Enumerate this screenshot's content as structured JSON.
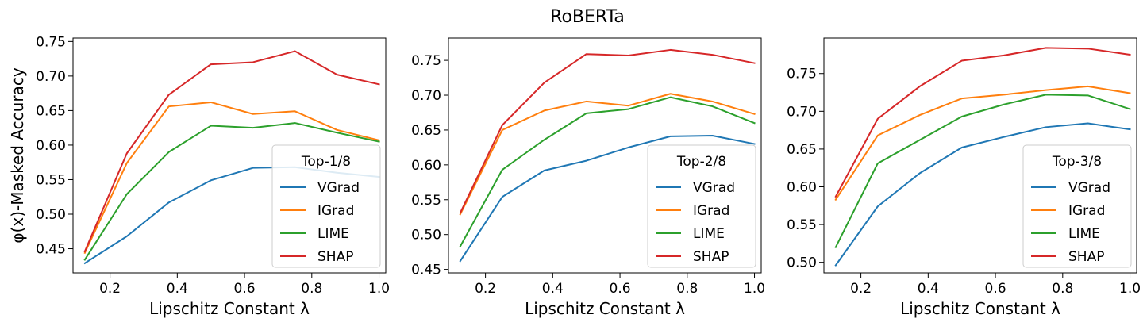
{
  "figure": {
    "suptitle": "RoBERTa"
  },
  "colors": {
    "VGrad": "#1f77b4",
    "IGrad": "#ff7f0e",
    "LIME": "#2ca02c",
    "SHAP": "#d62728"
  },
  "chart_data": [
    {
      "type": "line",
      "xlabel": "Lipschitz Constant λ",
      "ylabel": "φ(x)-Masked Accuracy",
      "legend_title": "Top-1/8",
      "legend_position": "lower-right",
      "xlim": [
        0.09,
        1.02
      ],
      "ylim": [
        0.415,
        0.755
      ],
      "xticks": [
        0.2,
        0.4,
        0.6,
        0.8,
        1.0
      ],
      "xtick_labels": [
        "0.2",
        "0.4",
        "0.6",
        "0.8",
        "1.0"
      ],
      "yticks": [
        0.45,
        0.5,
        0.55,
        0.6,
        0.65,
        0.7,
        0.75
      ],
      "ytick_labels": [
        "0.45",
        "0.50",
        "0.55",
        "0.60",
        "0.65",
        "0.70",
        "0.75"
      ],
      "x": [
        0.125,
        0.25,
        0.375,
        0.5,
        0.625,
        0.75,
        0.875,
        1.0
      ],
      "series": [
        {
          "name": "VGrad",
          "values": [
            0.429,
            0.468,
            0.517,
            0.549,
            0.567,
            0.568,
            0.56,
            0.554
          ]
        },
        {
          "name": "IGrad",
          "values": [
            0.444,
            0.574,
            0.656,
            0.662,
            0.645,
            0.649,
            0.622,
            0.607
          ]
        },
        {
          "name": "LIME",
          "values": [
            0.434,
            0.529,
            0.59,
            0.628,
            0.625,
            0.632,
            0.618,
            0.605
          ]
        },
        {
          "name": "SHAP",
          "values": [
            0.446,
            0.588,
            0.673,
            0.717,
            0.72,
            0.736,
            0.702,
            0.688
          ]
        }
      ]
    },
    {
      "type": "line",
      "xlabel": "Lipschitz Constant λ",
      "ylabel": "",
      "legend_title": "Top-2/8",
      "legend_position": "lower-right",
      "xlim": [
        0.09,
        1.02
      ],
      "ylim": [
        0.445,
        0.782
      ],
      "xticks": [
        0.2,
        0.4,
        0.6,
        0.8,
        1.0
      ],
      "xtick_labels": [
        "0.2",
        "0.4",
        "0.6",
        "0.8",
        "1.0"
      ],
      "yticks": [
        0.45,
        0.5,
        0.55,
        0.6,
        0.65,
        0.7,
        0.75
      ],
      "ytick_labels": [
        "0.45",
        "0.50",
        "0.55",
        "0.60",
        "0.65",
        "0.70",
        "0.75"
      ],
      "x": [
        0.125,
        0.25,
        0.375,
        0.5,
        0.625,
        0.75,
        0.875,
        1.0
      ],
      "series": [
        {
          "name": "VGrad",
          "values": [
            0.462,
            0.554,
            0.592,
            0.606,
            0.625,
            0.641,
            0.642,
            0.63
          ]
        },
        {
          "name": "IGrad",
          "values": [
            0.529,
            0.65,
            0.678,
            0.691,
            0.685,
            0.702,
            0.691,
            0.673
          ]
        },
        {
          "name": "LIME",
          "values": [
            0.483,
            0.593,
            0.636,
            0.674,
            0.68,
            0.697,
            0.684,
            0.66
          ]
        },
        {
          "name": "SHAP",
          "values": [
            0.531,
            0.657,
            0.718,
            0.759,
            0.757,
            0.765,
            0.758,
            0.746
          ]
        }
      ]
    },
    {
      "type": "line",
      "xlabel": "Lipschitz Constant λ",
      "ylabel": "",
      "legend_title": "Top-3/8",
      "legend_position": "lower-right",
      "xlim": [
        0.09,
        1.02
      ],
      "ylim": [
        0.486,
        0.797
      ],
      "xticks": [
        0.2,
        0.4,
        0.6,
        0.8,
        1.0
      ],
      "xtick_labels": [
        "0.2",
        "0.4",
        "0.6",
        "0.8",
        "1.0"
      ],
      "yticks": [
        0.5,
        0.55,
        0.6,
        0.65,
        0.7,
        0.75
      ],
      "ytick_labels": [
        "0.50",
        "0.55",
        "0.60",
        "0.65",
        "0.70",
        "0.75"
      ],
      "x": [
        0.125,
        0.25,
        0.375,
        0.5,
        0.625,
        0.75,
        0.875,
        1.0
      ],
      "series": [
        {
          "name": "VGrad",
          "values": [
            0.496,
            0.574,
            0.618,
            0.652,
            0.666,
            0.679,
            0.684,
            0.676
          ]
        },
        {
          "name": "IGrad",
          "values": [
            0.583,
            0.668,
            0.695,
            0.717,
            0.722,
            0.728,
            0.733,
            0.724
          ]
        },
        {
          "name": "LIME",
          "values": [
            0.52,
            0.631,
            0.662,
            0.693,
            0.709,
            0.722,
            0.721,
            0.703
          ]
        },
        {
          "name": "SHAP",
          "values": [
            0.587,
            0.69,
            0.733,
            0.767,
            0.774,
            0.784,
            0.783,
            0.775
          ]
        }
      ]
    }
  ]
}
